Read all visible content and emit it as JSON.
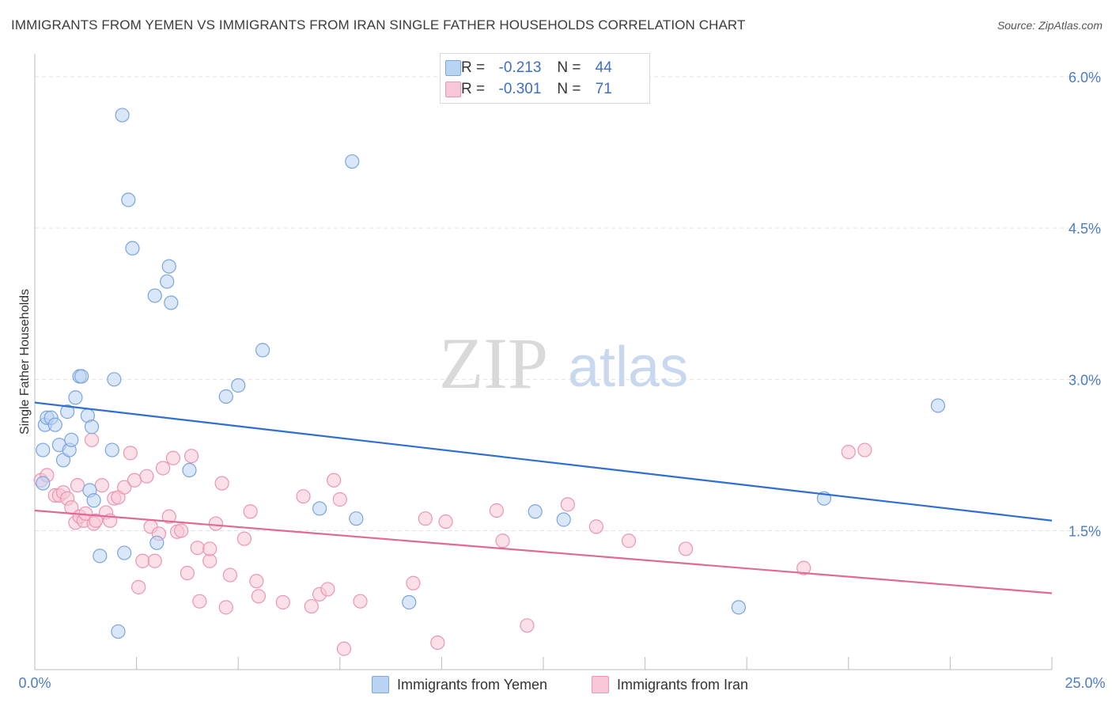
{
  "title": "IMMIGRANTS FROM YEMEN VS IMMIGRANTS FROM IRAN SINGLE FATHER HOUSEHOLDS CORRELATION CHART",
  "source": "Source: ZipAtlas.com",
  "watermark": {
    "zip": "ZIP",
    "atlas": "atlas"
  },
  "legend": {
    "r_label": "R =",
    "n_label": "N =",
    "rows": [
      {
        "r": "-0.213",
        "n": "44"
      },
      {
        "r": "-0.301",
        "n": "71"
      }
    ]
  },
  "chart_data": {
    "type": "scatter",
    "title": "IMMIGRANTS FROM YEMEN VS IMMIGRANTS FROM IRAN SINGLE FATHER HOUSEHOLDS CORRELATION CHART",
    "xlabel": "",
    "ylabel": "Single Father Households",
    "xlim": [
      0,
      25
    ],
    "ylim": [
      0,
      6.2
    ],
    "x_tick_labels": [
      "0.0%",
      "25.0%"
    ],
    "y_ticks": [
      1.5,
      3.0,
      4.5,
      6.0
    ],
    "y_tick_labels": [
      "1.5%",
      "3.0%",
      "4.5%",
      "6.0%"
    ],
    "colors": {
      "yemen_fill": "#b9d3f3",
      "yemen_stroke": "#7aa5dd",
      "yemen_line": "#2f6fd1",
      "iran_fill": "#f8c6d6",
      "iran_stroke": "#eb95b1",
      "iran_line": "#e06a95"
    },
    "series": [
      {
        "name": "Immigrants from Yemen",
        "trend": {
          "x": [
            0,
            25
          ],
          "y": [
            2.77,
            1.6
          ]
        },
        "points": [
          [
            0.2,
            2.3
          ],
          [
            0.2,
            1.97
          ],
          [
            0.25,
            2.55
          ],
          [
            0.3,
            2.62
          ],
          [
            0.4,
            2.62
          ],
          [
            0.5,
            2.55
          ],
          [
            0.6,
            2.35
          ],
          [
            0.7,
            2.2
          ],
          [
            0.8,
            2.68
          ],
          [
            0.85,
            2.3
          ],
          [
            0.9,
            2.4
          ],
          [
            1.0,
            2.82
          ],
          [
            1.1,
            3.03
          ],
          [
            1.15,
            3.03
          ],
          [
            1.3,
            2.64
          ],
          [
            1.4,
            2.53
          ],
          [
            1.35,
            1.9
          ],
          [
            1.45,
            1.8
          ],
          [
            1.6,
            1.25
          ],
          [
            1.9,
            2.3
          ],
          [
            1.95,
            3.0
          ],
          [
            2.05,
            0.5
          ],
          [
            2.15,
            5.62
          ],
          [
            2.2,
            1.28
          ],
          [
            2.3,
            4.78
          ],
          [
            2.4,
            4.3
          ],
          [
            2.95,
            3.83
          ],
          [
            3.0,
            1.38
          ],
          [
            3.25,
            3.97
          ],
          [
            3.3,
            4.12
          ],
          [
            3.35,
            3.76
          ],
          [
            3.8,
            2.1
          ],
          [
            4.7,
            2.83
          ],
          [
            5.0,
            2.94
          ],
          [
            5.6,
            3.29
          ],
          [
            7.0,
            1.72
          ],
          [
            7.8,
            5.16
          ],
          [
            7.9,
            1.62
          ],
          [
            9.2,
            0.79
          ],
          [
            12.3,
            1.69
          ],
          [
            13.0,
            1.61
          ],
          [
            17.3,
            0.74
          ],
          [
            19.4,
            1.82
          ],
          [
            22.2,
            2.74
          ]
        ]
      },
      {
        "name": "Immigrants from Iran",
        "trend": {
          "x": [
            0,
            25
          ],
          "y": [
            1.7,
            0.88
          ]
        },
        "points": [
          [
            0.15,
            2.0
          ],
          [
            0.3,
            2.05
          ],
          [
            0.5,
            1.85
          ],
          [
            0.6,
            1.85
          ],
          [
            0.7,
            1.88
          ],
          [
            0.8,
            1.82
          ],
          [
            0.9,
            1.73
          ],
          [
            1.0,
            1.58
          ],
          [
            1.05,
            1.95
          ],
          [
            1.1,
            1.64
          ],
          [
            1.2,
            1.6
          ],
          [
            1.25,
            1.67
          ],
          [
            1.4,
            2.4
          ],
          [
            1.45,
            1.57
          ],
          [
            1.5,
            1.6
          ],
          [
            1.65,
            1.95
          ],
          [
            1.75,
            1.68
          ],
          [
            1.85,
            1.6
          ],
          [
            1.95,
            1.82
          ],
          [
            2.05,
            1.83
          ],
          [
            2.2,
            1.93
          ],
          [
            2.35,
            2.27
          ],
          [
            2.45,
            2.0
          ],
          [
            2.55,
            0.94
          ],
          [
            2.65,
            1.2
          ],
          [
            2.75,
            2.04
          ],
          [
            2.85,
            1.54
          ],
          [
            2.95,
            1.2
          ],
          [
            3.05,
            1.47
          ],
          [
            3.15,
            2.12
          ],
          [
            3.3,
            1.64
          ],
          [
            3.4,
            2.22
          ],
          [
            3.5,
            1.49
          ],
          [
            3.6,
            1.5
          ],
          [
            3.75,
            1.08
          ],
          [
            3.85,
            2.24
          ],
          [
            4.0,
            1.33
          ],
          [
            4.05,
            0.8
          ],
          [
            4.3,
            1.2
          ],
          [
            4.3,
            1.32
          ],
          [
            4.45,
            1.57
          ],
          [
            4.6,
            1.97
          ],
          [
            4.7,
            0.74
          ],
          [
            4.8,
            1.06
          ],
          [
            5.15,
            1.42
          ],
          [
            5.3,
            1.69
          ],
          [
            5.45,
            1.0
          ],
          [
            5.5,
            0.85
          ],
          [
            6.1,
            0.79
          ],
          [
            6.6,
            1.84
          ],
          [
            6.8,
            0.75
          ],
          [
            7.0,
            0.87
          ],
          [
            7.2,
            0.92
          ],
          [
            7.35,
            2.0
          ],
          [
            7.5,
            1.81
          ],
          [
            7.6,
            0.33
          ],
          [
            8.0,
            0.8
          ],
          [
            9.3,
            0.98
          ],
          [
            9.6,
            1.62
          ],
          [
            9.9,
            0.39
          ],
          [
            10.1,
            1.59
          ],
          [
            11.35,
            1.7
          ],
          [
            11.5,
            1.4
          ],
          [
            12.1,
            0.56
          ],
          [
            13.1,
            1.76
          ],
          [
            13.8,
            1.54
          ],
          [
            14.6,
            1.4
          ],
          [
            16.0,
            1.32
          ],
          [
            18.9,
            1.13
          ],
          [
            20.0,
            2.28
          ],
          [
            20.4,
            2.3
          ]
        ]
      }
    ]
  }
}
